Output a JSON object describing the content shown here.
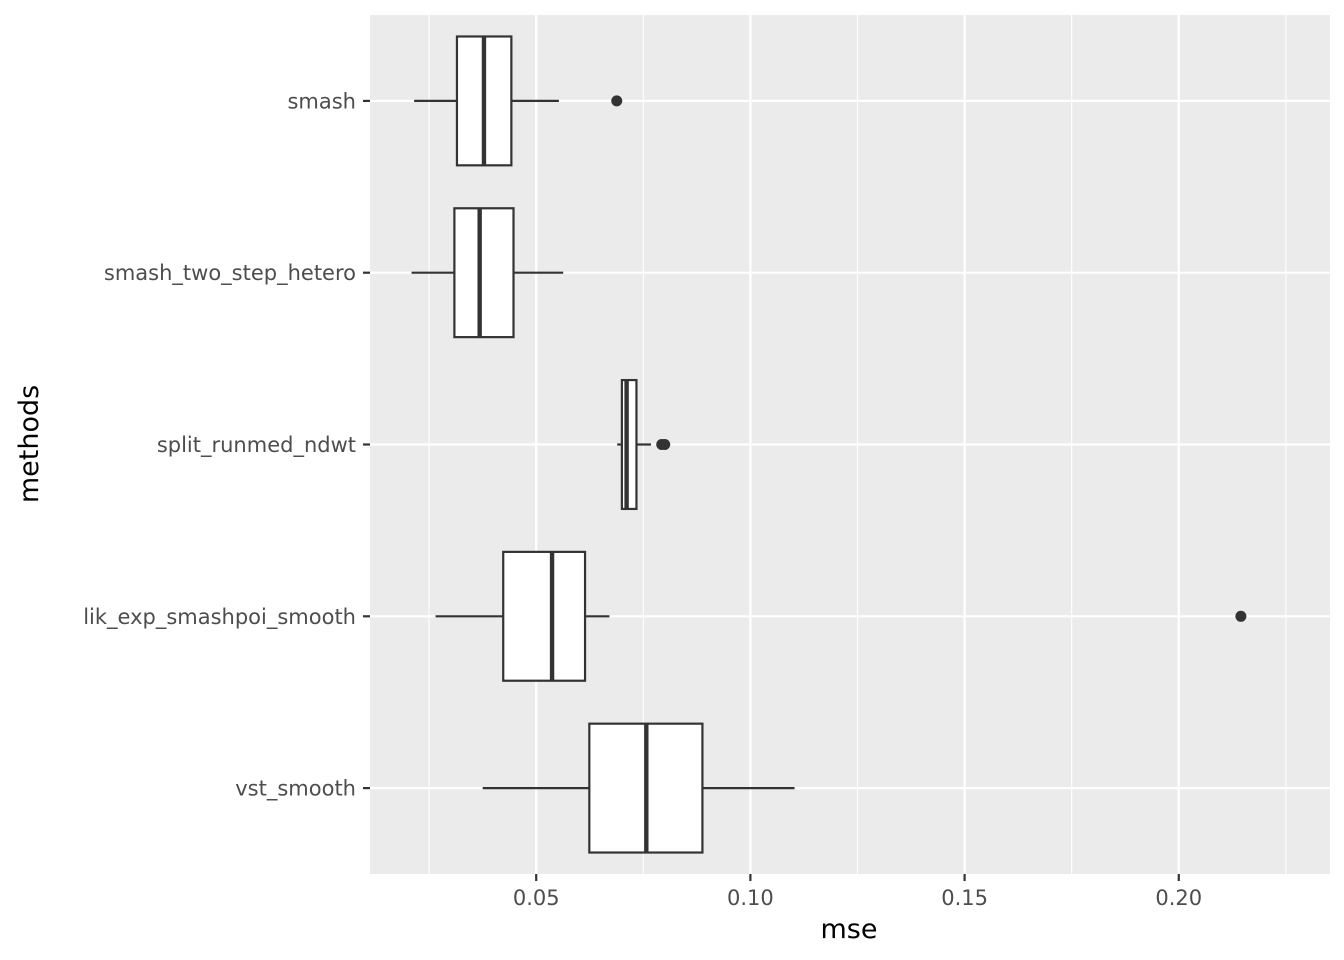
{
  "chart_data": {
    "type": "boxplot",
    "orientation": "horizontal",
    "xlabel": "mse",
    "ylabel": "methods",
    "xlim": [
      0.0112,
      0.2353
    ],
    "x_ticks": [
      0.05,
      0.1,
      0.15,
      0.2
    ],
    "x_tick_labels": [
      "0.05",
      "0.10",
      "0.15",
      "0.20"
    ],
    "grid": true,
    "categories": [
      "smash",
      "smash_two_step_hetero",
      "split_runmed_ndwt",
      "lik_exp_smashpoi_smooth",
      "vst_smooth"
    ],
    "boxes": [
      {
        "method": "smash",
        "whisker_low": 0.0215,
        "q1": 0.0315,
        "median": 0.0378,
        "q3": 0.0442,
        "whisker_high": 0.0553,
        "outliers": [
          0.0688
        ]
      },
      {
        "method": "smash_two_step_hetero",
        "whisker_low": 0.0209,
        "q1": 0.0309,
        "median": 0.0368,
        "q3": 0.0447,
        "whisker_high": 0.0563,
        "outliers": []
      },
      {
        "method": "split_runmed_ndwt",
        "whisker_low": 0.0689,
        "q1": 0.07,
        "median": 0.0711,
        "q3": 0.0734,
        "whisker_high": 0.0768,
        "outliers": [
          0.0793,
          0.08
        ]
      },
      {
        "method": "lik_exp_smashpoi_smooth",
        "whisker_low": 0.0265,
        "q1": 0.0423,
        "median": 0.0537,
        "q3": 0.0614,
        "whisker_high": 0.0671,
        "outliers": [
          0.2145
        ]
      },
      {
        "method": "vst_smooth",
        "whisker_low": 0.0375,
        "q1": 0.0624,
        "median": 0.0757,
        "q3": 0.0888,
        "whisker_high": 0.1103,
        "outliers": []
      }
    ]
  }
}
